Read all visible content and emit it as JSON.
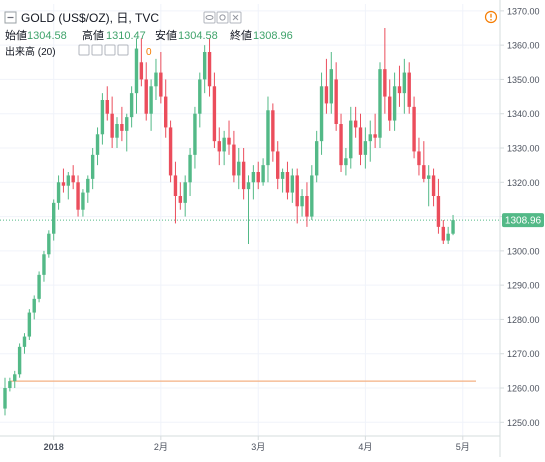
{
  "header": {
    "symbol": "GOLD (US$/OZ), 日, TVC",
    "ohlc": [
      {
        "label": "始値",
        "value": "1304.58"
      },
      {
        "label": "高値",
        "value": "1310.47"
      },
      {
        "label": "安値",
        "value": "1304.58"
      },
      {
        "label": "終値",
        "value": "1308.96"
      }
    ],
    "volume_label": "出来高 (20)",
    "volume_value": "0"
  },
  "colors": {
    "up": "#53b987",
    "down": "#eb4d5c",
    "value_text": "#3fa36b",
    "axis_text": "#4c525e",
    "grid": "#f0f3fa",
    "last_line": "#53b987",
    "hline": "#f4b183",
    "warning": "#f57c00"
  },
  "icons": {
    "collapse": "collapse-icon",
    "eye": "eye-icon",
    "settings": "gear-icon",
    "close": "close-icon",
    "warning": "warning-icon"
  },
  "chart_data": {
    "type": "candlestick",
    "y_ticks": [
      1250,
      1260,
      1270,
      1280,
      1290,
      1300,
      1310,
      1320,
      1330,
      1340,
      1350,
      1360,
      1370
    ],
    "y_tick_labels": [
      "1250.00",
      "1260.00",
      "1270.00",
      "1280.00",
      "1290.00",
      "1300.00",
      "1310.00",
      "1320.00",
      "1330.00",
      "1340.00",
      "1350.00",
      "1360.00",
      "1370.00"
    ],
    "ylim": [
      1246,
      1372
    ],
    "x_ticks": [
      {
        "index": 10,
        "label": "2018",
        "bold": true
      },
      {
        "index": 32,
        "label": "2月"
      },
      {
        "index": 52,
        "label": "3月"
      },
      {
        "index": 74,
        "label": "4月"
      },
      {
        "index": 94,
        "label": "5月"
      }
    ],
    "last_price": 1308.96,
    "last_price_label": "1308.96",
    "horizontal_line": 1262,
    "hline_from_index": 1,
    "candles": [
      [
        1254,
        1263,
        1252,
        1260
      ],
      [
        1260,
        1263,
        1259,
        1262
      ],
      [
        1262,
        1265,
        1260,
        1264
      ],
      [
        1264,
        1273,
        1263,
        1272
      ],
      [
        1272,
        1276,
        1270,
        1275
      ],
      [
        1275,
        1283,
        1274,
        1282
      ],
      [
        1282,
        1287,
        1280,
        1286
      ],
      [
        1286,
        1294,
        1285,
        1293
      ],
      [
        1293,
        1300,
        1291,
        1299
      ],
      [
        1299,
        1306,
        1298,
        1305
      ],
      [
        1305,
        1315,
        1303,
        1314
      ],
      [
        1314,
        1322,
        1312,
        1320
      ],
      [
        1320,
        1324,
        1317,
        1319
      ],
      [
        1319,
        1323,
        1315,
        1322
      ],
      [
        1322,
        1325,
        1318,
        1320
      ],
      [
        1320,
        1322,
        1310,
        1312
      ],
      [
        1312,
        1318,
        1310,
        1317
      ],
      [
        1317,
        1322,
        1314,
        1321
      ],
      [
        1321,
        1330,
        1318,
        1328
      ],
      [
        1328,
        1336,
        1325,
        1334
      ],
      [
        1334,
        1346,
        1331,
        1344
      ],
      [
        1344,
        1348,
        1338,
        1340
      ],
      [
        1340,
        1345,
        1330,
        1333
      ],
      [
        1333,
        1339,
        1330,
        1337
      ],
      [
        1337,
        1342,
        1332,
        1335
      ],
      [
        1335,
        1340,
        1329,
        1339
      ],
      [
        1339,
        1348,
        1336,
        1346
      ],
      [
        1346,
        1362,
        1340,
        1359
      ],
      [
        1355,
        1362,
        1348,
        1350
      ],
      [
        1350,
        1355,
        1338,
        1340
      ],
      [
        1340,
        1350,
        1335,
        1348
      ],
      [
        1348,
        1356,
        1344,
        1352
      ],
      [
        1352,
        1358,
        1343,
        1345
      ],
      [
        1345,
        1350,
        1333,
        1336
      ],
      [
        1336,
        1338,
        1320,
        1322
      ],
      [
        1322,
        1326,
        1308,
        1316
      ],
      [
        1316,
        1320,
        1312,
        1314
      ],
      [
        1314,
        1322,
        1310,
        1320
      ],
      [
        1320,
        1330,
        1316,
        1328
      ],
      [
        1328,
        1342,
        1324,
        1340
      ],
      [
        1340,
        1352,
        1336,
        1350
      ],
      [
        1350,
        1360,
        1346,
        1358
      ],
      [
        1358,
        1362,
        1345,
        1348
      ],
      [
        1348,
        1352,
        1330,
        1332
      ],
      [
        1332,
        1336,
        1325,
        1329
      ],
      [
        1329,
        1335,
        1325,
        1333
      ],
      [
        1333,
        1338,
        1328,
        1331
      ],
      [
        1331,
        1335,
        1320,
        1322
      ],
      [
        1322,
        1330,
        1318,
        1326
      ],
      [
        1326,
        1330,
        1315,
        1318
      ],
      [
        1318,
        1322,
        1302,
        1320
      ],
      [
        1320,
        1325,
        1315,
        1323
      ],
      [
        1323,
        1326,
        1318,
        1320
      ],
      [
        1320,
        1327,
        1319,
        1325
      ],
      [
        1325,
        1345,
        1320,
        1341
      ],
      [
        1341,
        1343,
        1326,
        1329
      ],
      [
        1329,
        1332,
        1318,
        1321
      ],
      [
        1321,
        1324,
        1317,
        1323
      ],
      [
        1323,
        1326,
        1315,
        1317
      ],
      [
        1317,
        1324,
        1314,
        1322
      ],
      [
        1322,
        1324,
        1308,
        1313
      ],
      [
        1313,
        1318,
        1310,
        1316
      ],
      [
        1316,
        1320,
        1307,
        1310
      ],
      [
        1310,
        1325,
        1309,
        1322
      ],
      [
        1322,
        1335,
        1320,
        1332
      ],
      [
        1332,
        1352,
        1328,
        1348
      ],
      [
        1348,
        1356,
        1340,
        1343
      ],
      [
        1343,
        1358,
        1340,
        1353
      ],
      [
        1350,
        1355,
        1335,
        1337
      ],
      [
        1337,
        1340,
        1323,
        1325
      ],
      [
        1325,
        1330,
        1322,
        1327
      ],
      [
        1327,
        1342,
        1324,
        1338
      ],
      [
        1338,
        1342,
        1333,
        1336
      ],
      [
        1336,
        1340,
        1325,
        1328
      ],
      [
        1328,
        1336,
        1324,
        1332
      ],
      [
        1332,
        1338,
        1326,
        1334
      ],
      [
        1334,
        1340,
        1330,
        1333
      ],
      [
        1333,
        1355,
        1330,
        1353
      ],
      [
        1353,
        1365,
        1340,
        1345
      ],
      [
        1345,
        1350,
        1335,
        1338
      ],
      [
        1338,
        1352,
        1335,
        1348
      ],
      [
        1348,
        1354,
        1342,
        1346
      ],
      [
        1346,
        1356,
        1340,
        1352
      ],
      [
        1352,
        1355,
        1340,
        1342
      ],
      [
        1342,
        1345,
        1327,
        1329
      ],
      [
        1329,
        1333,
        1322,
        1325
      ],
      [
        1325,
        1332,
        1320,
        1321
      ],
      [
        1321,
        1325,
        1313,
        1322
      ],
      [
        1322,
        1324,
        1313,
        1316
      ],
      [
        1316,
        1321,
        1305,
        1307
      ],
      [
        1307,
        1309,
        1302,
        1303
      ],
      [
        1303,
        1307,
        1302,
        1305
      ],
      [
        1305,
        1310.47,
        1304.58,
        1308.96
      ]
    ]
  }
}
